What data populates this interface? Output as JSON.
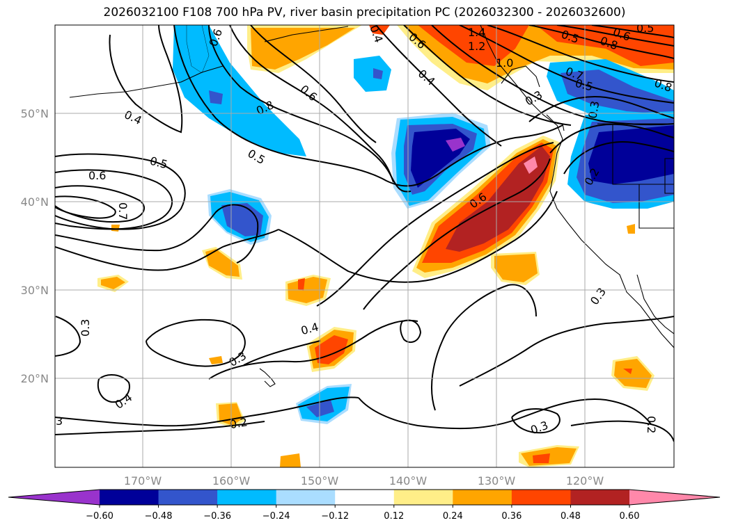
{
  "title": "2026032100 F108 700 hPa PV, river basin precipitation PC (2026032300 - 2026032600)",
  "lat_labels": [
    "50°N",
    "40°N",
    "30°N",
    "20°N"
  ],
  "lon_labels": [
    "170°W",
    "160°W",
    "150°W",
    "140°W",
    "130°W",
    "120°W"
  ],
  "contour_labels": [
    "0.4",
    "0.5",
    "0.6",
    "0.7",
    "0.8",
    "0.6",
    "0.5",
    "0.6",
    "0.4",
    "0.6",
    "1.4",
    "1.2",
    "1.0",
    "0.4",
    "0.6",
    "0.8",
    "0.5",
    "0.7",
    "0.5",
    "0.3",
    "0.6",
    "0.2",
    "0.3",
    "0.4",
    "0.3",
    "0.4",
    "0.2",
    "3",
    "0.3",
    "0.2",
    "0.3",
    "0.8",
    "0.3",
    "0.5"
  ],
  "colorbar": {
    "ticks": [
      "−0.60",
      "−0.48",
      "−0.36",
      "−0.24",
      "−0.12",
      "0.12",
      "0.24",
      "0.36",
      "0.48",
      "0.60"
    ],
    "colors": [
      "#9933cc",
      "#000099",
      "#3355cc",
      "#00bbff",
      "#aaddff",
      "#ffffff",
      "#ffee88",
      "#ffa500",
      "#ff4500",
      "#b22222",
      "#ff88aa"
    ]
  }
}
